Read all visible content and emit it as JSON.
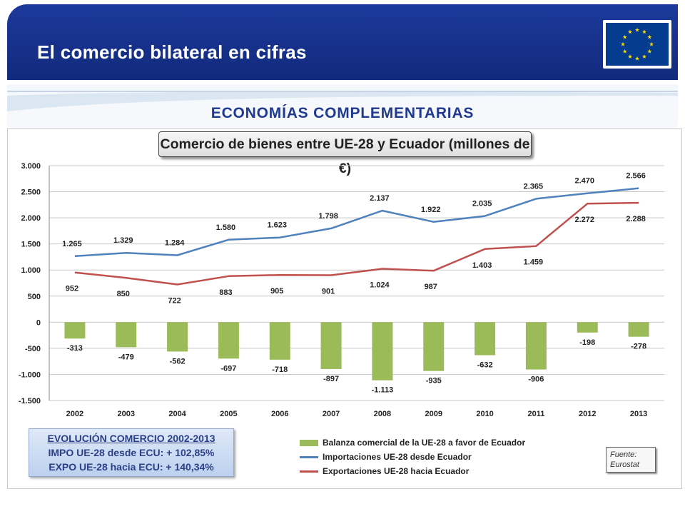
{
  "header": {
    "title": "El comercio bilateral en cifras"
  },
  "subtitle": "ECONOMÍAS COMPLEMENTARIAS",
  "chart_data": {
    "type": "bar",
    "title": "Comercio de bienes entre UE-28 y Ecuador (millones de €)",
    "categories": [
      "2002",
      "2003",
      "2004",
      "2005",
      "2006",
      "2007",
      "2008",
      "2009",
      "2010",
      "2011",
      "2012",
      "2013"
    ],
    "ylim": [
      -1500,
      3000
    ],
    "yticks": [
      3000,
      2500,
      2000,
      1500,
      1000,
      500,
      0,
      -500,
      -1000,
      -1500
    ],
    "ytick_labels": [
      "3.000",
      "2.500",
      "2.000",
      "1.500",
      "1.000",
      "500",
      "0",
      "-500",
      "-1.000",
      "-1.500"
    ],
    "grid": true,
    "legend": "bottom",
    "series": [
      {
        "name": "Balanza comercial de la UE-28 a favor de Ecuador",
        "type": "bar",
        "color": "#9bbb59",
        "values": [
          -313,
          -479,
          -562,
          -697,
          -718,
          -897,
          -1113,
          -935,
          -632,
          -906,
          -198,
          -278
        ],
        "labels": [
          "-313",
          "-479",
          "-562",
          "-697",
          "-718",
          "-897",
          "-1.113",
          "-935",
          "-632",
          "-906",
          "-198",
          "-278"
        ]
      },
      {
        "name": "Importaciones UE-28 desde Ecuador",
        "type": "line",
        "color": "#4f81bd",
        "values": [
          1265,
          1329,
          1284,
          1580,
          1623,
          1798,
          2137,
          1922,
          2035,
          2365,
          2470,
          2566
        ],
        "labels": [
          "1.265",
          "1.329",
          "1.284",
          "1.580",
          "1.623",
          "1.798",
          "2.137",
          "1.922",
          "2.035",
          "2.365",
          "2.470",
          "2.566"
        ]
      },
      {
        "name": "Exportaciones UE-28 hacia Ecuador",
        "type": "line",
        "color": "#c0504d",
        "values": [
          952,
          850,
          722,
          883,
          905,
          901,
          1024,
          987,
          1403,
          1459,
          2272,
          2288
        ],
        "labels": [
          "952",
          "850",
          "722",
          "883",
          "905",
          "901",
          "1.024",
          "987",
          "1.403",
          "1.459",
          "2.272",
          "2.288"
        ]
      }
    ]
  },
  "evolution_box": {
    "heading": "EVOLUCIÓN COMERCIO 2002-2013",
    "line1": "IMPO UE-28 desde ECU: + 102,85%",
    "line2": "EXPO UE-28 hacia ECU: + 140,34%"
  },
  "source": {
    "line1": "Fuente:",
    "line2": "Eurostat"
  },
  "eu_flag": {
    "icon": "eu-flag-icon",
    "stars": 12,
    "background": "#063c8f",
    "star_color": "#ffdd00"
  }
}
